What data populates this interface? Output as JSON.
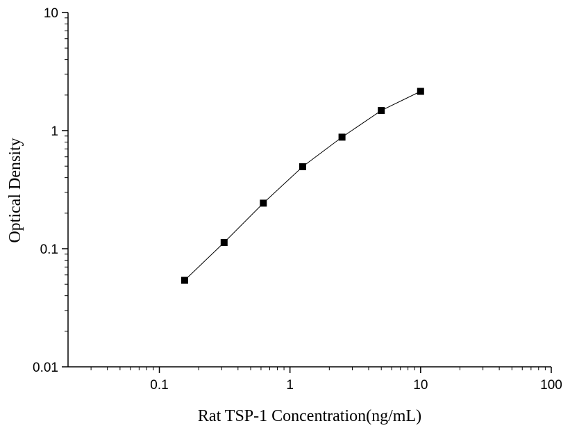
{
  "chart_data": {
    "type": "line",
    "title": "",
    "xlabel": "Rat TSP-1 Concentration(ng/mL)",
    "ylabel": "Optical Density",
    "x_scale": "log",
    "y_scale": "log",
    "xlim": [
      0.02,
      100
    ],
    "ylim": [
      0.01,
      10
    ],
    "x_ticks": [
      {
        "value": 0.1,
        "label": "0.1"
      },
      {
        "value": 1,
        "label": "1"
      },
      {
        "value": 10,
        "label": "10"
      },
      {
        "value": 100,
        "label": "100"
      }
    ],
    "y_ticks": [
      {
        "value": 0.01,
        "label": "0.01"
      },
      {
        "value": 0.1,
        "label": "0.1"
      },
      {
        "value": 1,
        "label": "1"
      },
      {
        "value": 10,
        "label": "10"
      }
    ],
    "grid": false,
    "legend": "none",
    "marker": "square",
    "series": [
      {
        "x": [
          0.156,
          0.313,
          0.625,
          1.25,
          2.5,
          5,
          10
        ],
        "y": [
          0.054,
          0.113,
          0.243,
          0.495,
          0.88,
          1.48,
          2.15
        ]
      }
    ],
    "colors": {
      "line": "#000000",
      "marker": "#000000",
      "axis": "#000000"
    }
  }
}
